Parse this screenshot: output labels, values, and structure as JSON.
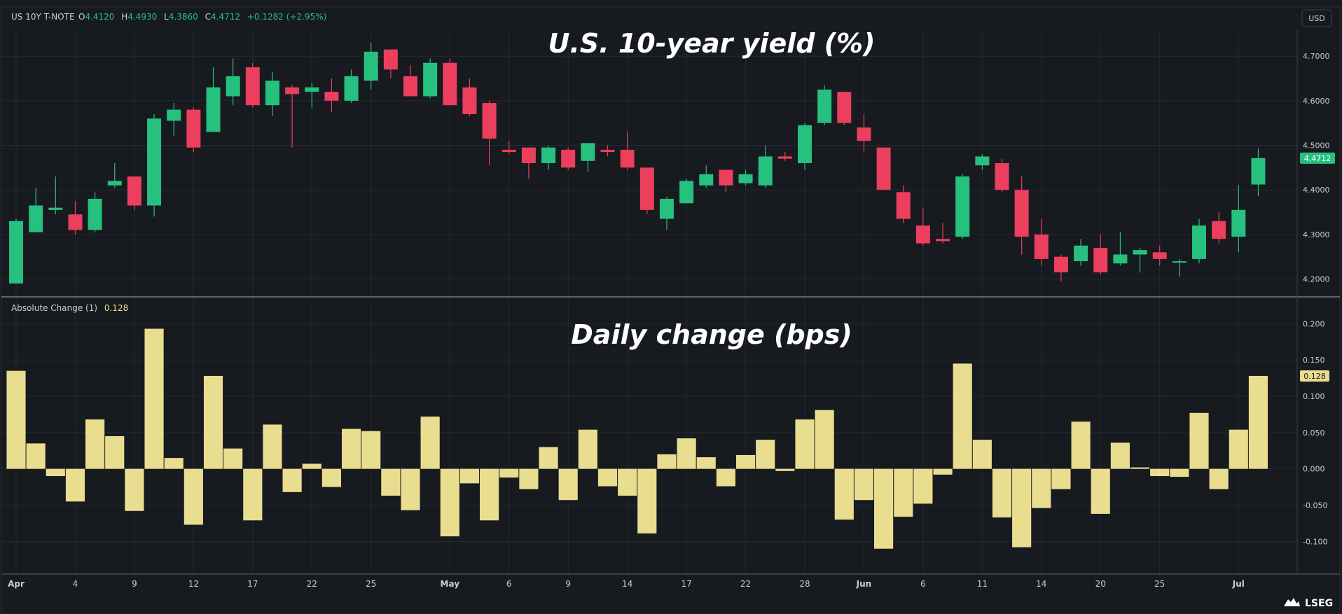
{
  "header": {
    "symbol": "US 10Y T-NOTE",
    "o_label": "O",
    "o_value": "4.4120",
    "h_label": "H",
    "h_value": "4.4930",
    "l_label": "L",
    "l_value": "4.3860",
    "c_label": "C",
    "c_value": "4.4712",
    "change": "+0.1282 (+2.95%)",
    "currency_button": "USD"
  },
  "indicator": {
    "name": "Absolute Change (1)",
    "value": "0.128"
  },
  "titles": {
    "top": "U.S. 10-year yield (%)",
    "bottom": "Daily change (bps)"
  },
  "price_axis": {
    "ticks": [
      "4.2000",
      "4.3000",
      "4.4000",
      "4.5000",
      "4.6000",
      "4.7000"
    ],
    "last_label": "4.4712"
  },
  "change_axis": {
    "ticks": [
      "-0.100",
      "-0.050",
      "0.000",
      "0.050",
      "0.100",
      "0.150",
      "0.200"
    ],
    "last_label": "0.128"
  },
  "x_axis": {
    "labels": [
      "Apr",
      "4",
      "9",
      "12",
      "17",
      "22",
      "25",
      "May",
      "6",
      "9",
      "14",
      "17",
      "22",
      "28",
      "Jun",
      "6",
      "11",
      "14",
      "20",
      "25",
      "Jul"
    ],
    "label_bar_index": [
      0,
      3,
      6,
      9,
      12,
      15,
      18,
      22,
      25,
      28,
      31,
      34,
      37,
      40,
      43,
      46,
      49,
      52,
      55,
      58,
      62
    ]
  },
  "logo": "LSEG",
  "colors": {
    "background": "#171a1f",
    "up": "#26c17f",
    "down": "#ec3e5d",
    "histogram": "#e9dd8f",
    "text": "#c8cdd6",
    "grid": "#262a32"
  },
  "chart_data": [
    {
      "type": "candlestick",
      "title": "U.S. 10-year yield (%)",
      "ylim": [
        4.16,
        4.76
      ],
      "grid": true,
      "candles": [
        {
          "o": 4.19,
          "h": 4.335,
          "l": 4.19,
          "c": 4.33
        },
        {
          "o": 4.305,
          "h": 4.405,
          "l": 4.305,
          "c": 4.365
        },
        {
          "o": 4.355,
          "h": 4.43,
          "l": 4.345,
          "c": 4.36
        },
        {
          "o": 4.345,
          "h": 4.375,
          "l": 4.3,
          "c": 4.31
        },
        {
          "o": 4.31,
          "h": 4.395,
          "l": 4.305,
          "c": 4.38
        },
        {
          "o": 4.41,
          "h": 4.46,
          "l": 4.405,
          "c": 4.42
        },
        {
          "o": 4.43,
          "h": 4.43,
          "l": 4.355,
          "c": 4.365
        },
        {
          "o": 4.365,
          "h": 4.57,
          "l": 4.34,
          "c": 4.56
        },
        {
          "o": 4.555,
          "h": 4.595,
          "l": 4.52,
          "c": 4.58
        },
        {
          "o": 4.58,
          "h": 4.585,
          "l": 4.485,
          "c": 4.495
        },
        {
          "o": 4.53,
          "h": 4.675,
          "l": 4.53,
          "c": 4.63
        },
        {
          "o": 4.61,
          "h": 4.695,
          "l": 4.59,
          "c": 4.655
        },
        {
          "o": 4.675,
          "h": 4.685,
          "l": 4.585,
          "c": 4.59
        },
        {
          "o": 4.59,
          "h": 4.665,
          "l": 4.565,
          "c": 4.645
        },
        {
          "o": 4.63,
          "h": 4.635,
          "l": 4.495,
          "c": 4.615
        },
        {
          "o": 4.62,
          "h": 4.64,
          "l": 4.585,
          "c": 4.63
        },
        {
          "o": 4.62,
          "h": 4.65,
          "l": 4.575,
          "c": 4.6
        },
        {
          "o": 4.6,
          "h": 4.67,
          "l": 4.595,
          "c": 4.655
        },
        {
          "o": 4.645,
          "h": 4.73,
          "l": 4.625,
          "c": 4.71
        },
        {
          "o": 4.715,
          "h": 4.715,
          "l": 4.65,
          "c": 4.67
        },
        {
          "o": 4.655,
          "h": 4.68,
          "l": 4.61,
          "c": 4.61
        },
        {
          "o": 4.61,
          "h": 4.695,
          "l": 4.605,
          "c": 4.685
        },
        {
          "o": 4.685,
          "h": 4.695,
          "l": 4.59,
          "c": 4.59
        },
        {
          "o": 4.63,
          "h": 4.65,
          "l": 4.565,
          "c": 4.57
        },
        {
          "o": 4.595,
          "h": 4.6,
          "l": 4.455,
          "c": 4.515
        },
        {
          "o": 4.49,
          "h": 4.51,
          "l": 4.48,
          "c": 4.485
        },
        {
          "o": 4.495,
          "h": 4.495,
          "l": 4.425,
          "c": 4.46
        },
        {
          "o": 4.46,
          "h": 4.5,
          "l": 4.445,
          "c": 4.495
        },
        {
          "o": 4.49,
          "h": 4.495,
          "l": 4.445,
          "c": 4.45
        },
        {
          "o": 4.465,
          "h": 4.505,
          "l": 4.44,
          "c": 4.505
        },
        {
          "o": 4.49,
          "h": 4.5,
          "l": 4.475,
          "c": 4.485
        },
        {
          "o": 4.49,
          "h": 4.53,
          "l": 4.445,
          "c": 4.45
        },
        {
          "o": 4.45,
          "h": 4.45,
          "l": 4.345,
          "c": 4.355
        },
        {
          "o": 4.335,
          "h": 4.385,
          "l": 4.31,
          "c": 4.38
        },
        {
          "o": 4.37,
          "h": 4.425,
          "l": 4.37,
          "c": 4.42
        },
        {
          "o": 4.41,
          "h": 4.455,
          "l": 4.405,
          "c": 4.435
        },
        {
          "o": 4.445,
          "h": 4.445,
          "l": 4.395,
          "c": 4.41
        },
        {
          "o": 4.415,
          "h": 4.445,
          "l": 4.41,
          "c": 4.435
        },
        {
          "o": 4.41,
          "h": 4.5,
          "l": 4.405,
          "c": 4.475
        },
        {
          "o": 4.475,
          "h": 4.485,
          "l": 4.465,
          "c": 4.47
        },
        {
          "o": 4.46,
          "h": 4.55,
          "l": 4.445,
          "c": 4.545
        },
        {
          "o": 4.55,
          "h": 4.635,
          "l": 4.545,
          "c": 4.625
        },
        {
          "o": 4.62,
          "h": 4.62,
          "l": 4.545,
          "c": 4.55
        },
        {
          "o": 4.54,
          "h": 4.57,
          "l": 4.485,
          "c": 4.51
        },
        {
          "o": 4.495,
          "h": 4.495,
          "l": 4.4,
          "c": 4.4
        },
        {
          "o": 4.395,
          "h": 4.41,
          "l": 4.325,
          "c": 4.335
        },
        {
          "o": 4.32,
          "h": 4.36,
          "l": 4.275,
          "c": 4.28
        },
        {
          "o": 4.29,
          "h": 4.325,
          "l": 4.28,
          "c": 4.285
        },
        {
          "o": 4.295,
          "h": 4.435,
          "l": 4.29,
          "c": 4.43
        },
        {
          "o": 4.455,
          "h": 4.48,
          "l": 4.445,
          "c": 4.475
        },
        {
          "o": 4.46,
          "h": 4.47,
          "l": 4.395,
          "c": 4.4
        },
        {
          "o": 4.4,
          "h": 4.43,
          "l": 4.255,
          "c": 4.295
        },
        {
          "o": 4.3,
          "h": 4.335,
          "l": 4.23,
          "c": 4.245
        },
        {
          "o": 4.25,
          "h": 4.255,
          "l": 4.195,
          "c": 4.215
        },
        {
          "o": 4.24,
          "h": 4.29,
          "l": 4.23,
          "c": 4.275
        },
        {
          "o": 4.27,
          "h": 4.3,
          "l": 4.21,
          "c": 4.215
        },
        {
          "o": 4.235,
          "h": 4.305,
          "l": 4.23,
          "c": 4.255
        },
        {
          "o": 4.255,
          "h": 4.27,
          "l": 4.215,
          "c": 4.265
        },
        {
          "o": 4.26,
          "h": 4.275,
          "l": 4.23,
          "c": 4.245
        },
        {
          "o": 4.24,
          "h": 4.245,
          "l": 4.205,
          "c": 4.24
        },
        {
          "o": 4.245,
          "h": 4.335,
          "l": 4.235,
          "c": 4.32
        },
        {
          "o": 4.33,
          "h": 4.35,
          "l": 4.28,
          "c": 4.29
        },
        {
          "o": 4.295,
          "h": 4.41,
          "l": 4.26,
          "c": 4.355
        },
        {
          "o": 4.412,
          "h": 4.493,
          "l": 4.386,
          "c": 4.4712
        }
      ]
    },
    {
      "type": "bar",
      "title": "Daily change (bps)",
      "series_label": "Absolute Change (1)",
      "ylim": [
        -0.145,
        0.235
      ],
      "values": [
        0.135,
        0.035,
        -0.01,
        -0.045,
        0.068,
        0.045,
        -0.058,
        0.193,
        0.015,
        -0.077,
        0.128,
        0.028,
        -0.071,
        0.061,
        -0.032,
        0.007,
        -0.025,
        0.055,
        0.052,
        -0.037,
        -0.057,
        0.072,
        -0.093,
        -0.02,
        -0.071,
        -0.012,
        -0.028,
        0.03,
        -0.043,
        0.054,
        -0.024,
        -0.037,
        -0.089,
        0.02,
        0.042,
        0.016,
        -0.024,
        0.019,
        0.04,
        -0.003,
        0.068,
        0.081,
        -0.07,
        -0.043,
        -0.11,
        -0.066,
        -0.048,
        -0.008,
        0.145,
        0.04,
        -0.067,
        -0.108,
        -0.054,
        -0.028,
        0.065,
        -0.062,
        0.036,
        0.002,
        -0.01,
        -0.011,
        0.077,
        -0.028,
        0.054,
        0.128
      ]
    }
  ]
}
